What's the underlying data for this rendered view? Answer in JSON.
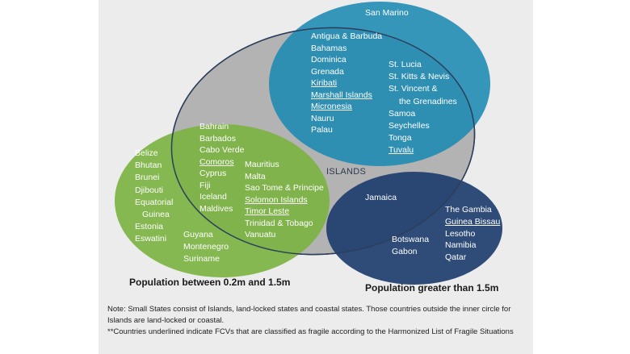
{
  "islands_label": "ISLANDS",
  "pop_small_label": "Population between 0.2m and 1.5m",
  "pop_large_label": "Population greater than 1.5m",
  "san_marino": "San Marino",
  "blue_left": [
    "Antigua & Barbuda",
    "Bahamas",
    "Dominica",
    "Grenada",
    "Kiribati",
    "Marshall Islands",
    "Micronesia",
    "Nauru",
    "Palau"
  ],
  "blue_right": [
    "St. Lucia",
    "St. Kitts & Nevis",
    "St. Vincent &",
    "the Grenadines",
    "Samoa",
    "Seychelles",
    "Tonga",
    "Tuvalu"
  ],
  "overlap_left": [
    "Bahrain",
    "Barbados",
    "Cabo Verde",
    "Comoros",
    "Cyprus",
    "Fiji",
    "Iceland",
    "Maldives"
  ],
  "overlap_right": [
    "Mauritius",
    "Malta",
    "Sao Tome &  Principe",
    "Solomon Islands",
    "Timor Leste",
    "Trinidad & Tobago",
    "Vanuatu"
  ],
  "green_left": [
    "Belize",
    "Bhutan",
    "Brunei",
    "Djibouti",
    "Equatorial",
    "Guinea",
    "Estonia",
    "Eswatini"
  ],
  "green_bottom": [
    "Guyana",
    "Montenegro",
    "Suriname"
  ],
  "jamaica": "Jamaica",
  "navy_mid": [
    "Botswana",
    "Gabon"
  ],
  "navy_right": [
    "The Gambia",
    "Guinea Bissau",
    "Lesotho",
    "Namibia",
    "Qatar"
  ],
  "note_line1": "Note: Small States consist of Islands, land-locked states and coastal states. Those countries outside the inner circle for Islands are land-locked or coastal.",
  "note_line2": "**Countries underlined indicate FCVs that are classified as fragile according to the Harmonized List of Fragile Situations",
  "fragile_countries": [
    "Kiribati",
    "Marshall Islands",
    "Micronesia",
    "Tuvalu",
    "Comoros",
    "Solomon Islands",
    "Timor Leste",
    "Guinea Bissau"
  ],
  "colors": {
    "panel": "#ececec",
    "islands_ellipse": "#a9a9a9",
    "blue": "#1d8ab3",
    "green": "#7cb342",
    "navy": "#1e3d6e",
    "text": "#ffffff"
  }
}
